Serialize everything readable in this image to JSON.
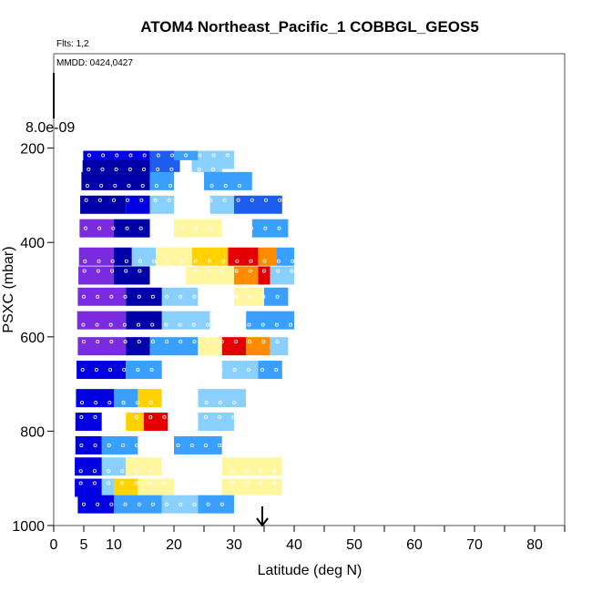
{
  "chart_data": {
    "type": "heatmap",
    "title": "ATOM4 Northeast_Pacific_1 COBBGL_GEOS5",
    "flights_note": "Flts: 1,2",
    "dates_note": "MMDD: 0424,0427",
    "colorbar_max_label": "8.0e-09",
    "xlabel": "Latitude (deg N)",
    "ylabel": "PSXC (mbar)",
    "xlim": [
      0,
      85
    ],
    "ylim": [
      1000,
      0
    ],
    "x_ticks": [
      0,
      5,
      10,
      20,
      30,
      40,
      50,
      60,
      70,
      80
    ],
    "y_ticks": [
      200,
      400,
      600,
      800,
      1000
    ],
    "colors": {
      "scale": [
        "#7a2be0",
        "#0000a8",
        "#0000e0",
        "#1e5cf0",
        "#3aa0ff",
        "#8ad0ff",
        "#ffffff",
        "#fff6a0",
        "#ffd200",
        "#ff8c00",
        "#e40000",
        "#a00000"
      ]
    },
    "rows": [
      {
        "pressure": 225,
        "segments": [
          [
            4.9,
            16,
            2
          ],
          [
            16,
            20,
            3
          ],
          [
            20,
            24,
            4
          ],
          [
            24,
            30,
            5
          ]
        ]
      },
      {
        "pressure": 245,
        "segments": [
          [
            4.8,
            16,
            1
          ],
          [
            16,
            21,
            3
          ],
          [
            21,
            23,
            6
          ],
          [
            23,
            28,
            5
          ]
        ]
      },
      {
        "pressure": 270,
        "segments": [
          [
            4.6,
            16,
            1
          ],
          [
            16,
            20,
            4
          ],
          [
            20,
            25,
            6
          ],
          [
            25,
            33,
            4
          ]
        ]
      },
      {
        "pressure": 320,
        "segments": [
          [
            4.4,
            12,
            1
          ],
          [
            12,
            16,
            2
          ],
          [
            16,
            20,
            5
          ],
          [
            20,
            26,
            6
          ],
          [
            26,
            30,
            5
          ],
          [
            30,
            38,
            3
          ]
        ]
      },
      {
        "pressure": 370,
        "segments": [
          [
            4.3,
            10,
            0
          ],
          [
            10,
            16,
            1
          ],
          [
            16,
            20,
            6
          ],
          [
            20,
            28,
            7
          ],
          [
            28,
            33,
            6
          ],
          [
            33,
            39,
            4
          ]
        ]
      },
      {
        "pressure": 430,
        "segments": [
          [
            4.2,
            10,
            0
          ],
          [
            10,
            13,
            1
          ],
          [
            13,
            17,
            5
          ],
          [
            17,
            23,
            7
          ],
          [
            23,
            29,
            8
          ],
          [
            29,
            34,
            10
          ],
          [
            34,
            37,
            9
          ],
          [
            37,
            40,
            4
          ]
        ]
      },
      {
        "pressure": 470,
        "segments": [
          [
            4.1,
            10,
            0
          ],
          [
            10,
            16,
            1
          ],
          [
            16,
            22,
            6
          ],
          [
            22,
            30,
            7
          ],
          [
            30,
            34,
            9
          ],
          [
            34,
            36,
            10
          ],
          [
            36,
            40,
            5
          ]
        ]
      },
      {
        "pressure": 515,
        "segments": [
          [
            4.0,
            12,
            0
          ],
          [
            12,
            18,
            1
          ],
          [
            18,
            24,
            5
          ],
          [
            24,
            30,
            6
          ],
          [
            30,
            35,
            7
          ],
          [
            35,
            39,
            4
          ]
        ]
      },
      {
        "pressure": 565,
        "segments": [
          [
            3.9,
            12,
            0
          ],
          [
            12,
            18,
            1
          ],
          [
            18,
            26,
            5
          ],
          [
            26,
            32,
            6
          ],
          [
            32,
            40,
            4
          ]
        ]
      },
      {
        "pressure": 620,
        "segments": [
          [
            4.0,
            12,
            0
          ],
          [
            12,
            16,
            1
          ],
          [
            16,
            24,
            4
          ],
          [
            24,
            28,
            7
          ],
          [
            28,
            32,
            10
          ],
          [
            32,
            36,
            9
          ],
          [
            36,
            39,
            5
          ]
        ]
      },
      {
        "pressure": 670,
        "segments": [
          [
            3.8,
            12,
            2
          ],
          [
            12,
            18,
            4
          ],
          [
            18,
            28,
            6
          ],
          [
            28,
            34,
            5
          ],
          [
            34,
            38,
            4
          ]
        ]
      },
      {
        "pressure": 730,
        "segments": [
          [
            3.7,
            10,
            2
          ],
          [
            10,
            14,
            4
          ],
          [
            14,
            18,
            8
          ],
          [
            18,
            24,
            6
          ],
          [
            24,
            32,
            5
          ],
          [
            32,
            38,
            6
          ]
        ]
      },
      {
        "pressure": 780,
        "segments": [
          [
            3.6,
            8,
            2
          ],
          [
            8,
            12,
            6
          ],
          [
            12,
            15,
            8
          ],
          [
            15,
            19,
            10
          ],
          [
            19,
            24,
            6
          ],
          [
            24,
            30,
            5
          ],
          [
            30,
            38,
            6
          ]
        ]
      },
      {
        "pressure": 830,
        "segments": [
          [
            3.6,
            8,
            2
          ],
          [
            8,
            14,
            4
          ],
          [
            14,
            20,
            6
          ],
          [
            20,
            28,
            4
          ],
          [
            28,
            38,
            6
          ]
        ]
      },
      {
        "pressure": 875,
        "segments": [
          [
            3.5,
            8,
            2
          ],
          [
            8,
            12,
            5
          ],
          [
            12,
            18,
            7
          ],
          [
            18,
            28,
            6
          ],
          [
            28,
            38,
            7
          ]
        ]
      },
      {
        "pressure": 920,
        "segments": [
          [
            3.5,
            8,
            2
          ],
          [
            8,
            10,
            5
          ],
          [
            10,
            14,
            8
          ],
          [
            14,
            20,
            7
          ],
          [
            20,
            28,
            6
          ],
          [
            28,
            38,
            7
          ]
        ]
      },
      {
        "pressure": 955,
        "segments": [
          [
            4.0,
            10,
            2
          ],
          [
            10,
            18,
            4
          ],
          [
            18,
            24,
            5
          ],
          [
            24,
            30,
            4
          ],
          [
            30,
            38,
            6
          ]
        ]
      }
    ]
  }
}
